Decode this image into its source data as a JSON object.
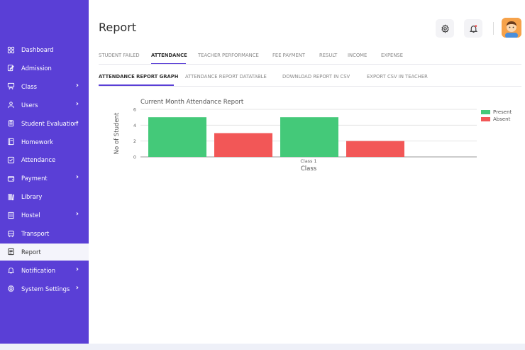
{
  "sidebar": {
    "items": [
      {
        "label": "Dashboard",
        "icon": "grid-icon",
        "chevron": false,
        "active": false
      },
      {
        "label": "Admission",
        "icon": "edit-icon",
        "chevron": false,
        "active": false
      },
      {
        "label": "Class",
        "icon": "classroom-icon",
        "chevron": true,
        "active": false
      },
      {
        "label": "Users",
        "icon": "user-icon",
        "chevron": true,
        "active": false
      },
      {
        "label": "Student Evaluation",
        "icon": "clipboard-icon",
        "chevron": true,
        "active": false
      },
      {
        "label": "Homework",
        "icon": "book-icon",
        "chevron": false,
        "active": false
      },
      {
        "label": "Attendance",
        "icon": "checkbox-icon",
        "chevron": false,
        "active": false
      },
      {
        "label": "Payment",
        "icon": "wallet-icon",
        "chevron": true,
        "active": false
      },
      {
        "label": "Library",
        "icon": "library-icon",
        "chevron": false,
        "active": false
      },
      {
        "label": "Hostel",
        "icon": "building-icon",
        "chevron": true,
        "active": false
      },
      {
        "label": "Transport",
        "icon": "bus-icon",
        "chevron": false,
        "active": false
      },
      {
        "label": "Report",
        "icon": "report-icon",
        "chevron": false,
        "active": true
      },
      {
        "label": "Notification",
        "icon": "bell-icon",
        "chevron": true,
        "active": false
      },
      {
        "label": "System Settings",
        "icon": "gear-icon",
        "chevron": true,
        "active": false
      }
    ],
    "chevron_glyph": "›"
  },
  "header": {
    "title": "Report"
  },
  "tabs": [
    {
      "label": "STUDENT FAILED"
    },
    {
      "label": "ATTENDANCE"
    },
    {
      "label": "TEACHER PERFORMANCE"
    },
    {
      "label": "FEE PAYMENT"
    },
    {
      "label": "RESULT"
    },
    {
      "label": "INCOME"
    },
    {
      "label": "EXPENSE"
    }
  ],
  "subtabs": [
    {
      "label": "ATTENDANCE REPORT GRAPH"
    },
    {
      "label": "ATTENDANCE REPORT DATATABLE"
    },
    {
      "label": "DOWNLOAD REPORT IN CSV"
    },
    {
      "label": "EXPORT CSV IN TEACHER"
    }
  ],
  "colors": {
    "sidebar": "#5a3fd6",
    "accent": "#5a3fd6",
    "present": "#44c979",
    "absent": "#f25757"
  },
  "chart_data": {
    "type": "bar",
    "title": "Current Month Attendance Report",
    "xlabel": "Class",
    "ylabel": "No of Student",
    "categories": [
      "Class 1"
    ],
    "bars": [
      {
        "series": "Present",
        "value": 5
      },
      {
        "series": "Absent",
        "value": 3
      },
      {
        "series": "Present",
        "value": 5
      },
      {
        "series": "Absent",
        "value": 2
      }
    ],
    "legend": [
      {
        "name": "Present",
        "color": "#44c979"
      },
      {
        "name": "Absent",
        "color": "#f25757"
      }
    ],
    "yticks": [
      0,
      2,
      4,
      6
    ],
    "ylim": [
      0,
      6
    ],
    "grid": true,
    "legend_position": "top-right"
  }
}
